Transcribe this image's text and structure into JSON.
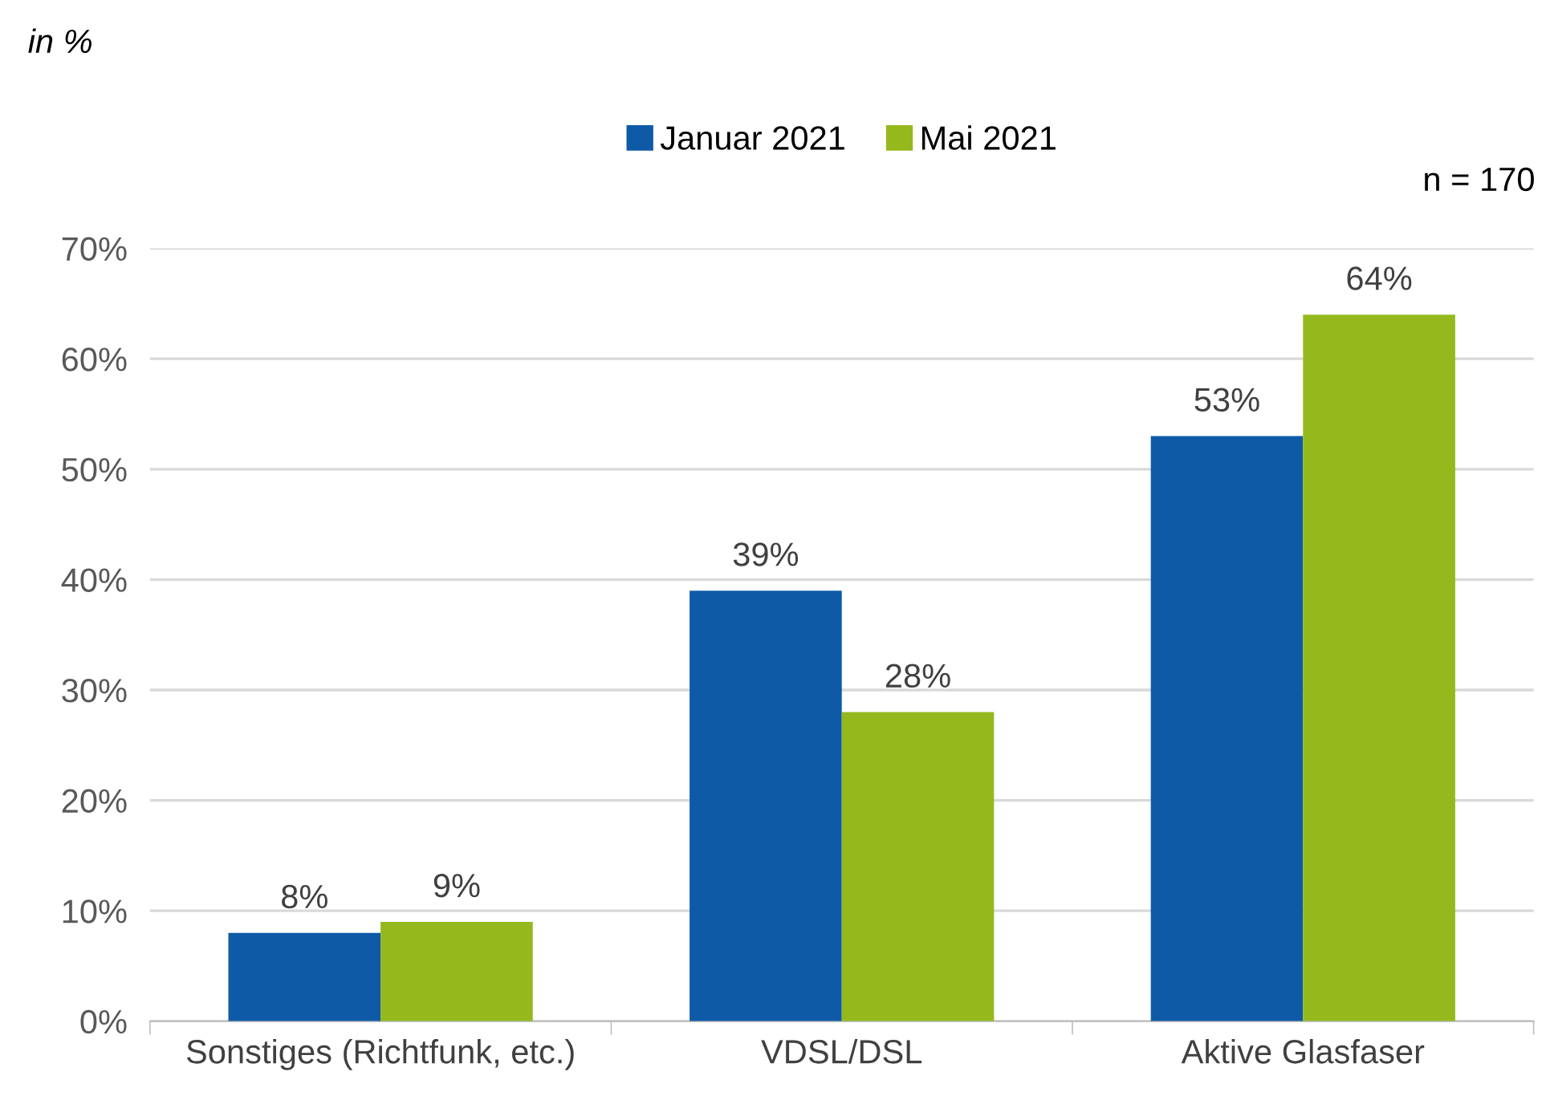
{
  "chart_data": {
    "type": "bar",
    "categories": [
      "Sonstiges (Richtfunk, etc.)",
      "VDSL/DSL",
      "Aktive Glasfaser"
    ],
    "series": [
      {
        "name": "Januar 2021",
        "color": "#0e5aa7",
        "values": [
          8,
          39,
          53
        ],
        "value_labels": [
          "8%",
          "39%",
          "53%"
        ]
      },
      {
        "name": "Mai 2021",
        "color": "#95b91c",
        "values": [
          9,
          28,
          64
        ],
        "value_labels": [
          "9%",
          "28%",
          "64%"
        ]
      }
    ],
    "ylim": [
      0,
      70
    ],
    "yticks": [
      {
        "value": 0,
        "label": "0%"
      },
      {
        "value": 10,
        "label": "10%"
      },
      {
        "value": 20,
        "label": "20%"
      },
      {
        "value": 30,
        "label": "30%"
      },
      {
        "value": 40,
        "label": "40%"
      },
      {
        "value": 50,
        "label": "50%"
      },
      {
        "value": 60,
        "label": "60%"
      },
      {
        "value": 70,
        "label": "70%"
      }
    ],
    "grid": "y",
    "legend": "top",
    "annotations": [
      "in %",
      "n = 170"
    ]
  }
}
